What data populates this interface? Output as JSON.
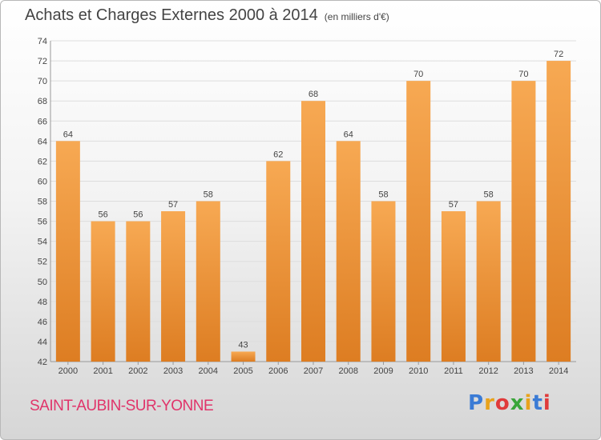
{
  "title": "Achats et Charges Externes 2000 à 2014",
  "subtitle": "(en milliers d'€)",
  "commune": "SAINT-AUBIN-SUR-YONNE",
  "logo": {
    "text": "Proxiti",
    "colors": [
      "#3a7bd5",
      "#e8a21b",
      "#e03a3a",
      "#3aa53a",
      "#e8a21b",
      "#3a7bd5",
      "#e03a3a"
    ]
  },
  "colors": {
    "bar_top": "#f7a953",
    "bar_bottom": "#dd7d22",
    "grid": "#dddddd",
    "axis_text": "#444444",
    "title": "#444444",
    "commune": "#e0346a"
  },
  "chart_data": {
    "type": "bar",
    "title": "Achats et Charges Externes 2000 à 2014",
    "categories": [
      "2000",
      "2001",
      "2002",
      "2003",
      "2004",
      "2005",
      "2006",
      "2007",
      "2008",
      "2009",
      "2010",
      "2011",
      "2012",
      "2013",
      "2014"
    ],
    "values": [
      64,
      56,
      56,
      57,
      58,
      43,
      62,
      68,
      64,
      58,
      70,
      57,
      58,
      70,
      72
    ],
    "ylim": [
      42,
      74
    ],
    "yticks": [
      42,
      44,
      46,
      48,
      50,
      52,
      54,
      56,
      58,
      60,
      62,
      64,
      66,
      68,
      70,
      72,
      74
    ],
    "grid": true
  }
}
